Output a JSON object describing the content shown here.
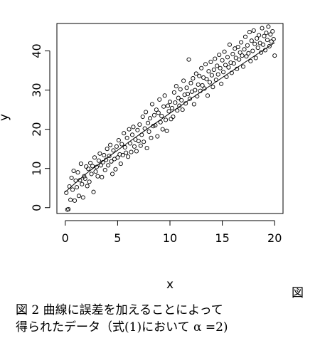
{
  "chart_data": {
    "type": "scatter",
    "xlabel": "x",
    "ylabel": "y",
    "xlim": [
      -0.8,
      20.8
    ],
    "ylim": [
      -1.5,
      47
    ],
    "xticks": [
      0,
      5,
      10,
      15,
      20
    ],
    "yticks": [
      0,
      10,
      20,
      30,
      40
    ],
    "grid": false,
    "legend": "none",
    "point_style": "open-circle",
    "fit_line": {
      "x": [
        0,
        2,
        4,
        6,
        8,
        10,
        12,
        14,
        16,
        18,
        20
      ],
      "y": [
        4.0,
        8.7,
        12.7,
        16.6,
        20.4,
        24.1,
        27.8,
        31.4,
        35.0,
        38.6,
        42.1
      ]
    },
    "points": [
      [
        0.1,
        3.8
      ],
      [
        0.2,
        -0.5
      ],
      [
        0.3,
        -0.4
      ],
      [
        0.4,
        5.4
      ],
      [
        0.5,
        2.0
      ],
      [
        0.6,
        7.6
      ],
      [
        0.7,
        4.6
      ],
      [
        0.8,
        9.4
      ],
      [
        0.9,
        1.8
      ],
      [
        1.0,
        6.9
      ],
      [
        1.1,
        5.2
      ],
      [
        1.2,
        9.0
      ],
      [
        1.3,
        3.0
      ],
      [
        1.4,
        7.0
      ],
      [
        1.5,
        11.2
      ],
      [
        1.6,
        6.0
      ],
      [
        1.7,
        2.6
      ],
      [
        1.8,
        8.0
      ],
      [
        1.9,
        7.4
      ],
      [
        2.0,
        10.5
      ],
      [
        2.1,
        5.5
      ],
      [
        2.2,
        9.9
      ],
      [
        2.3,
        6.6
      ],
      [
        2.4,
        11.4
      ],
      [
        2.5,
        8.6
      ],
      [
        2.6,
        10.6
      ],
      [
        2.7,
        4.0
      ],
      [
        2.8,
        12.8
      ],
      [
        2.9,
        9.2
      ],
      [
        3.0,
        10.4
      ],
      [
        3.1,
        8.0
      ],
      [
        3.2,
        12.0
      ],
      [
        3.3,
        13.8
      ],
      [
        3.4,
        10.8
      ],
      [
        3.5,
        7.8
      ],
      [
        3.6,
        11.6
      ],
      [
        3.7,
        13.4
      ],
      [
        3.8,
        9.6
      ],
      [
        3.9,
        12.2
      ],
      [
        4.0,
        15.0
      ],
      [
        4.1,
        10.8
      ],
      [
        4.2,
        13.2
      ],
      [
        4.3,
        16.0
      ],
      [
        4.4,
        11.8
      ],
      [
        4.5,
        8.6
      ],
      [
        4.6,
        14.6
      ],
      [
        4.7,
        12.4
      ],
      [
        4.8,
        9.8
      ],
      [
        4.9,
        15.6
      ],
      [
        5.0,
        12.8
      ],
      [
        5.1,
        17.2
      ],
      [
        5.2,
        13.6
      ],
      [
        5.3,
        11.2
      ],
      [
        5.4,
        16.2
      ],
      [
        5.5,
        13.4
      ],
      [
        5.6,
        19.0
      ],
      [
        5.7,
        15.4
      ],
      [
        5.8,
        14.0
      ],
      [
        5.9,
        17.8
      ],
      [
        6.0,
        13.0
      ],
      [
        6.1,
        20.0
      ],
      [
        6.2,
        16.4
      ],
      [
        6.3,
        14.2
      ],
      [
        6.4,
        18.6
      ],
      [
        6.5,
        20.6
      ],
      [
        6.6,
        15.6
      ],
      [
        6.7,
        17.4
      ],
      [
        6.8,
        14.4
      ],
      [
        6.9,
        19.8
      ],
      [
        7.0,
        17.0
      ],
      [
        7.1,
        21.2
      ],
      [
        7.2,
        15.8
      ],
      [
        7.3,
        18.6
      ],
      [
        7.4,
        23.2
      ],
      [
        7.5,
        16.8
      ],
      [
        7.6,
        20.2
      ],
      [
        7.7,
        24.4
      ],
      [
        7.8,
        15.2
      ],
      [
        7.9,
        21.6
      ],
      [
        8.0,
        19.4
      ],
      [
        8.1,
        22.8
      ],
      [
        8.2,
        17.8
      ],
      [
        8.3,
        26.4
      ],
      [
        8.4,
        20.8
      ],
      [
        8.5,
        23.6
      ],
      [
        8.6,
        21.0
      ],
      [
        8.7,
        25.0
      ],
      [
        8.8,
        18.2
      ],
      [
        8.9,
        24.2
      ],
      [
        9.0,
        27.6
      ],
      [
        9.1,
        21.8
      ],
      [
        9.2,
        23.4
      ],
      [
        9.3,
        20.0
      ],
      [
        9.4,
        25.8
      ],
      [
        9.5,
        28.6
      ],
      [
        9.6,
        22.4
      ],
      [
        9.7,
        19.6
      ],
      [
        9.8,
        26.0
      ],
      [
        9.9,
        24.6
      ],
      [
        10.0,
        27.0
      ],
      [
        10.1,
        22.6
      ],
      [
        10.2,
        25.4
      ],
      [
        10.3,
        23.2
      ],
      [
        10.4,
        29.4
      ],
      [
        10.5,
        26.8
      ],
      [
        10.6,
        31.0
      ],
      [
        10.7,
        24.8
      ],
      [
        10.8,
        28.0
      ],
      [
        10.9,
        26.0
      ],
      [
        11.0,
        30.2
      ],
      [
        11.1,
        27.4
      ],
      [
        11.2,
        25.0
      ],
      [
        11.3,
        32.4
      ],
      [
        11.4,
        28.8
      ],
      [
        11.5,
        26.6
      ],
      [
        11.6,
        30.6
      ],
      [
        11.7,
        29.0
      ],
      [
        11.8,
        37.8
      ],
      [
        11.9,
        27.8
      ],
      [
        12.0,
        31.8
      ],
      [
        12.1,
        29.6
      ],
      [
        12.2,
        33.0
      ],
      [
        12.3,
        26.4
      ],
      [
        12.4,
        30.0
      ],
      [
        12.5,
        34.2
      ],
      [
        12.6,
        28.4
      ],
      [
        12.7,
        31.4
      ],
      [
        12.8,
        33.6
      ],
      [
        12.9,
        29.8
      ],
      [
        13.0,
        35.6
      ],
      [
        13.1,
        31.2
      ],
      [
        13.2,
        33.2
      ],
      [
        13.3,
        30.4
      ],
      [
        13.4,
        36.6
      ],
      [
        13.5,
        32.8
      ],
      [
        13.6,
        28.6
      ],
      [
        13.7,
        34.8
      ],
      [
        13.8,
        32.0
      ],
      [
        13.9,
        37.2
      ],
      [
        14.0,
        33.8
      ],
      [
        14.1,
        30.8
      ],
      [
        14.2,
        35.2
      ],
      [
        14.3,
        38.0
      ],
      [
        14.4,
        32.6
      ],
      [
        14.5,
        36.2
      ],
      [
        14.6,
        34.0
      ],
      [
        14.7,
        39.0
      ],
      [
        14.8,
        35.6
      ],
      [
        14.9,
        31.6
      ],
      [
        15.0,
        37.6
      ],
      [
        15.1,
        34.6
      ],
      [
        15.2,
        39.8
      ],
      [
        15.3,
        36.4
      ],
      [
        15.4,
        33.4
      ],
      [
        15.5,
        38.4
      ],
      [
        15.6,
        35.8
      ],
      [
        15.7,
        41.6
      ],
      [
        15.8,
        37.0
      ],
      [
        15.9,
        34.4
      ],
      [
        16.0,
        39.2
      ],
      [
        16.1,
        36.8
      ],
      [
        16.2,
        40.6
      ],
      [
        16.3,
        38.2
      ],
      [
        16.4,
        35.4
      ],
      [
        16.5,
        41.0
      ],
      [
        16.6,
        37.8
      ],
      [
        16.7,
        39.6
      ],
      [
        16.8,
        42.2
      ],
      [
        16.9,
        38.8
      ],
      [
        17.0,
        36.0
      ],
      [
        17.1,
        40.4
      ],
      [
        17.2,
        43.6
      ],
      [
        17.3,
        38.6
      ],
      [
        17.4,
        41.4
      ],
      [
        17.5,
        39.4
      ],
      [
        17.6,
        44.8
      ],
      [
        17.7,
        37.4
      ],
      [
        17.8,
        42.6
      ],
      [
        17.9,
        40.0
      ],
      [
        18.0,
        45.2
      ],
      [
        18.1,
        41.8
      ],
      [
        18.2,
        38.2
      ],
      [
        18.3,
        43.2
      ],
      [
        18.4,
        40.8
      ],
      [
        18.5,
        44.0
      ],
      [
        18.6,
        42.0
      ],
      [
        18.7,
        39.6
      ],
      [
        18.8,
        45.8
      ],
      [
        18.9,
        41.6
      ],
      [
        19.0,
        43.8
      ],
      [
        19.1,
        40.2
      ],
      [
        19.2,
        44.6
      ],
      [
        19.3,
        42.8
      ],
      [
        19.4,
        46.2
      ],
      [
        19.5,
        41.2
      ],
      [
        19.6,
        44.2
      ],
      [
        19.7,
        42.4
      ],
      [
        19.8,
        45.0
      ],
      [
        19.9,
        43.0
      ],
      [
        20.0,
        38.8
      ]
    ]
  },
  "caption": {
    "line1": "図 2 曲線に誤差を加えることによって",
    "line2": "得られたデータ（式(1)において α =2)"
  },
  "side_mark": "図"
}
